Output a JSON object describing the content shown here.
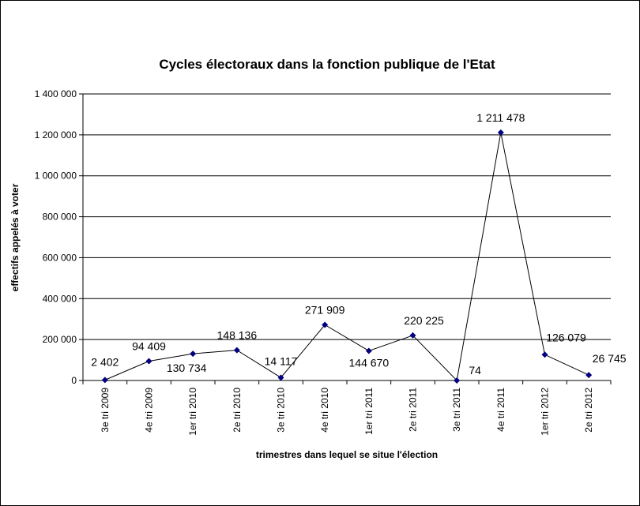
{
  "chart_data": {
    "type": "line",
    "title": "Cycles électoraux dans la fonction publique de l'Etat",
    "xlabel": "trimestres dans lequel se situe l'élection",
    "ylabel": "effectifs appelés à voter",
    "categories": [
      "3e tri 2009",
      "4e tri 2009",
      "1er tri 2010",
      "2e tri 2010",
      "3e tri 2010",
      "4e tri 2010",
      "1er tri 2011",
      "2e tri 2011",
      "3e tri 2011",
      "4e tri 2011",
      "1er tri 2012",
      "2e tri 2012"
    ],
    "values": [
      2402,
      94409,
      130734,
      148136,
      14117,
      271909,
      144670,
      220225,
      74,
      1211478,
      126079,
      26745
    ],
    "data_labels": [
      "2 402",
      "94 409",
      "130 734",
      "148 136",
      "14 117",
      "271 909",
      "144 670",
      "220 225",
      "74",
      "1 211 478",
      "126 079",
      "26 745"
    ],
    "ylim": [
      0,
      1400000
    ],
    "yticks": [
      0,
      200000,
      400000,
      600000,
      800000,
      1000000,
      1200000,
      1400000
    ],
    "ytick_labels": [
      "0",
      "200 000",
      "400 000",
      "600 000",
      "800 000",
      "1 000 000",
      "1 200 000",
      "1 400 000"
    ],
    "grid": "horizontal",
    "legend": "none",
    "line_color": "#000000",
    "marker_color": "#000080"
  }
}
